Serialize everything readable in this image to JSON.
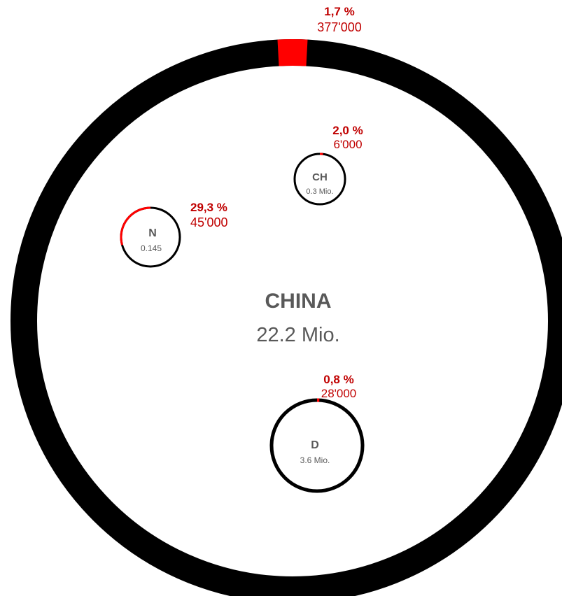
{
  "colors": {
    "ring": "#000000",
    "highlight": "#ff0000",
    "label_red": "#c00000",
    "label_gray": "#595959",
    "background": "#ffffff"
  },
  "chart_data": {
    "type": "pie",
    "units": "Mio.",
    "countries": [
      {
        "id": "china",
        "name": "CHINA",
        "population_label": "22.2 Mio.",
        "population": 22.2,
        "share_percent": 1.7,
        "share_label": "1,7 %",
        "count_label": "377'000",
        "count": 377000
      },
      {
        "id": "ch",
        "name": "CH",
        "population_label": "0.3 Mio.",
        "population": 0.3,
        "share_percent": 2.0,
        "share_label": "2,0 %",
        "count_label": "6'000",
        "count": 6000
      },
      {
        "id": "n",
        "name": "N",
        "population_label": "0.145",
        "population": 0.145,
        "share_percent": 29.3,
        "share_label": "29,3 %",
        "count_label": "45'000",
        "count": 45000
      },
      {
        "id": "d",
        "name": "D",
        "population_label": "3.6 Mio.",
        "population": 3.6,
        "share_percent": 0.8,
        "share_label": "0,8 %",
        "count_label": "28'000",
        "count": 28000
      }
    ]
  }
}
